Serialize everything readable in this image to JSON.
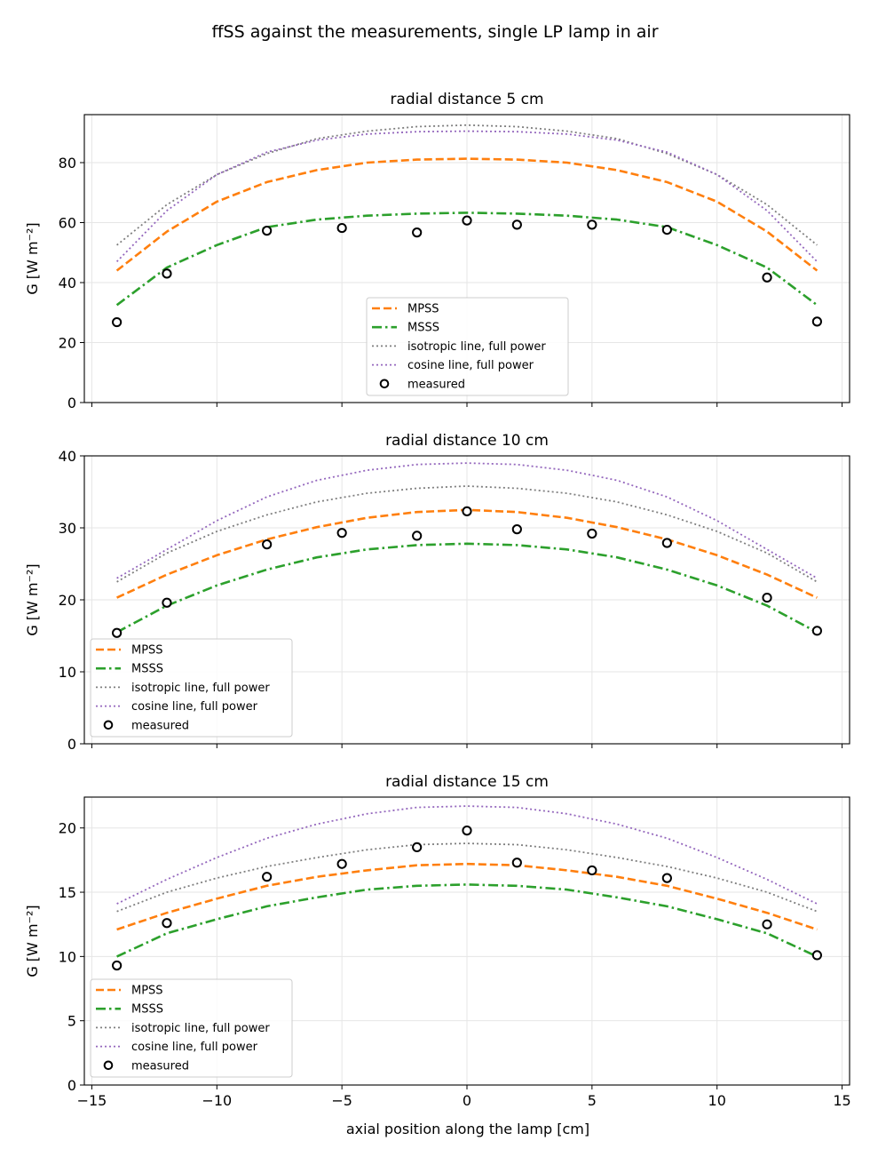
{
  "figure": {
    "title": "ffSS against the measurements, single LP lamp in air",
    "xlabel": "axial position along the lamp  [cm]",
    "ylabel": "G  [W m⁻²]"
  },
  "legend_labels": {
    "mpss": "MPSS",
    "msss": "MSSS",
    "iso": "isotropic line, full power",
    "cos": "cosine line, full power",
    "meas": "measured"
  },
  "colors": {
    "mpss": "#ff7f0e",
    "msss": "#2ca02c",
    "iso": "#7f7f7f",
    "cos": "#9467bd",
    "measured": "#000000"
  },
  "chart_data": [
    {
      "type": "line",
      "title": "radial distance 5 cm",
      "xlim": [
        -15.3,
        15.3
      ],
      "ylim": [
        0,
        96
      ],
      "xticks": [
        -15,
        -10,
        -5,
        0,
        5,
        10,
        15
      ],
      "xtick_labels": [
        "",
        "",
        "",
        "",
        "",
        "",
        ""
      ],
      "yticks": [
        0,
        20,
        40,
        60,
        80
      ],
      "ytick_labels": [
        "0",
        "20",
        "40",
        "60",
        "80"
      ],
      "grid": true,
      "legend_position": "lower-center",
      "lines": [
        {
          "key": "mpss",
          "x": [
            -14,
            -12,
            -10,
            -8,
            -6,
            -4,
            -2,
            0,
            2,
            4,
            6,
            8,
            10,
            12,
            14
          ],
          "y": [
            44,
            57,
            67,
            73.5,
            77.5,
            80,
            81,
            81.3,
            81,
            80,
            77.5,
            73.5,
            67,
            57,
            44
          ]
        },
        {
          "key": "msss",
          "x": [
            -14,
            -12,
            -10,
            -8,
            -6,
            -4,
            -2,
            0,
            2,
            4,
            6,
            8,
            10,
            12,
            14
          ],
          "y": [
            32.5,
            45,
            52.5,
            58.5,
            61,
            62.3,
            63,
            63.3,
            63,
            62.3,
            61,
            58.5,
            52.5,
            45,
            32.5
          ]
        },
        {
          "key": "iso",
          "x": [
            -14,
            -12,
            -10,
            -8,
            -6,
            -4,
            -2,
            0,
            2,
            4,
            6,
            8,
            10,
            12,
            14
          ],
          "y": [
            52.5,
            66,
            76,
            83,
            88,
            90.5,
            92,
            92.5,
            92,
            90.5,
            88,
            83,
            76,
            66,
            52.5
          ]
        },
        {
          "key": "cos",
          "x": [
            -14,
            -12,
            -10,
            -8,
            -6,
            -4,
            -2,
            0,
            2,
            4,
            6,
            8,
            10,
            12,
            14
          ],
          "y": [
            47,
            64,
            76,
            83.5,
            87.5,
            89.5,
            90.3,
            90.5,
            90.3,
            89.5,
            87.5,
            83.5,
            76,
            64,
            47
          ]
        }
      ],
      "measured": {
        "x": [
          -14,
          -12,
          -8,
          -5,
          -2,
          0,
          2,
          5,
          8,
          12,
          14
        ],
        "y": [
          26.8,
          43,
          57.3,
          58.2,
          56.7,
          60.7,
          59.3,
          59.3,
          57.6,
          41.7,
          27
        ]
      }
    },
    {
      "type": "line",
      "title": "radial distance 10 cm",
      "xlim": [
        -15.3,
        15.3
      ],
      "ylim": [
        0,
        40
      ],
      "xticks": [
        -15,
        -10,
        -5,
        0,
        5,
        10,
        15
      ],
      "xtick_labels": [
        "",
        "",
        "",
        "",
        "",
        "",
        ""
      ],
      "yticks": [
        0,
        10,
        20,
        30,
        40
      ],
      "ytick_labels": [
        "0",
        "10",
        "20",
        "30",
        "40"
      ],
      "grid": true,
      "legend_position": "lower-left",
      "lines": [
        {
          "key": "mpss",
          "x": [
            -14,
            -12,
            -10,
            -8,
            -6,
            -4,
            -2,
            0,
            2,
            4,
            6,
            8,
            10,
            12,
            14
          ],
          "y": [
            20.3,
            23.5,
            26.2,
            28.4,
            30.1,
            31.4,
            32.2,
            32.5,
            32.2,
            31.4,
            30.1,
            28.4,
            26.2,
            23.5,
            20.3
          ]
        },
        {
          "key": "msss",
          "x": [
            -14,
            -12,
            -10,
            -8,
            -6,
            -4,
            -2,
            0,
            2,
            4,
            6,
            8,
            10,
            12,
            14
          ],
          "y": [
            15.5,
            19.2,
            22,
            24.2,
            25.9,
            27,
            27.6,
            27.8,
            27.6,
            27,
            25.9,
            24.2,
            22,
            19.2,
            15.5
          ]
        },
        {
          "key": "iso",
          "x": [
            -14,
            -12,
            -10,
            -8,
            -6,
            -4,
            -2,
            0,
            2,
            4,
            6,
            8,
            10,
            12,
            14
          ],
          "y": [
            22.5,
            26.5,
            29.5,
            31.8,
            33.6,
            34.8,
            35.5,
            35.8,
            35.5,
            34.8,
            33.6,
            31.8,
            29.5,
            26.5,
            22.5
          ]
        },
        {
          "key": "cos",
          "x": [
            -14,
            -12,
            -10,
            -8,
            -6,
            -4,
            -2,
            0,
            2,
            4,
            6,
            8,
            10,
            12,
            14
          ],
          "y": [
            23,
            27,
            31,
            34.3,
            36.6,
            38,
            38.8,
            39,
            38.8,
            38,
            36.6,
            34.3,
            31,
            27,
            23
          ]
        }
      ],
      "measured": {
        "x": [
          -14,
          -12,
          -8,
          -5,
          -2,
          0,
          2,
          5,
          8,
          12,
          14
        ],
        "y": [
          15.4,
          19.6,
          27.7,
          29.3,
          28.9,
          32.3,
          29.8,
          29.2,
          27.9,
          20.3,
          15.7
        ]
      }
    },
    {
      "type": "line",
      "title": "radial distance 15 cm",
      "xlim": [
        -15.3,
        15.3
      ],
      "ylim": [
        0,
        22.4
      ],
      "xticks": [
        -15,
        -10,
        -5,
        0,
        5,
        10,
        15
      ],
      "xtick_labels": [
        "−15",
        "−10",
        "−5",
        "0",
        "5",
        "10",
        "15"
      ],
      "yticks": [
        0,
        5,
        10,
        15,
        20
      ],
      "ytick_labels": [
        "0",
        "5",
        "10",
        "15",
        "20"
      ],
      "grid": true,
      "legend_position": "lower-left",
      "lines": [
        {
          "key": "mpss",
          "x": [
            -14,
            -12,
            -10,
            -8,
            -6,
            -4,
            -2,
            0,
            2,
            4,
            6,
            8,
            10,
            12,
            14
          ],
          "y": [
            12.1,
            13.4,
            14.5,
            15.5,
            16.2,
            16.7,
            17.1,
            17.2,
            17.1,
            16.7,
            16.2,
            15.5,
            14.5,
            13.4,
            12.1
          ]
        },
        {
          "key": "msss",
          "x": [
            -14,
            -12,
            -10,
            -8,
            -6,
            -4,
            -2,
            0,
            2,
            4,
            6,
            8,
            10,
            12,
            14
          ],
          "y": [
            10,
            11.8,
            12.9,
            13.9,
            14.6,
            15.2,
            15.5,
            15.6,
            15.5,
            15.2,
            14.6,
            13.9,
            12.9,
            11.8,
            10
          ]
        },
        {
          "key": "iso",
          "x": [
            -14,
            -12,
            -10,
            -8,
            -6,
            -4,
            -2,
            0,
            2,
            4,
            6,
            8,
            10,
            12,
            14
          ],
          "y": [
            13.5,
            15,
            16.1,
            17,
            17.7,
            18.3,
            18.7,
            18.8,
            18.7,
            18.3,
            17.7,
            17,
            16.1,
            15,
            13.5
          ]
        },
        {
          "key": "cos",
          "x": [
            -14,
            -12,
            -10,
            -8,
            -6,
            -4,
            -2,
            0,
            2,
            4,
            6,
            8,
            10,
            12,
            14
          ],
          "y": [
            14.1,
            16,
            17.7,
            19.2,
            20.3,
            21.1,
            21.6,
            21.7,
            21.6,
            21.1,
            20.3,
            19.2,
            17.7,
            16,
            14.1
          ]
        }
      ],
      "measured": {
        "x": [
          -14,
          -12,
          -8,
          -5,
          -2,
          0,
          2,
          5,
          8,
          12,
          14
        ],
        "y": [
          9.3,
          12.6,
          16.2,
          17.2,
          18.5,
          19.8,
          17.3,
          16.7,
          16.1,
          12.5,
          10.1
        ]
      }
    }
  ]
}
